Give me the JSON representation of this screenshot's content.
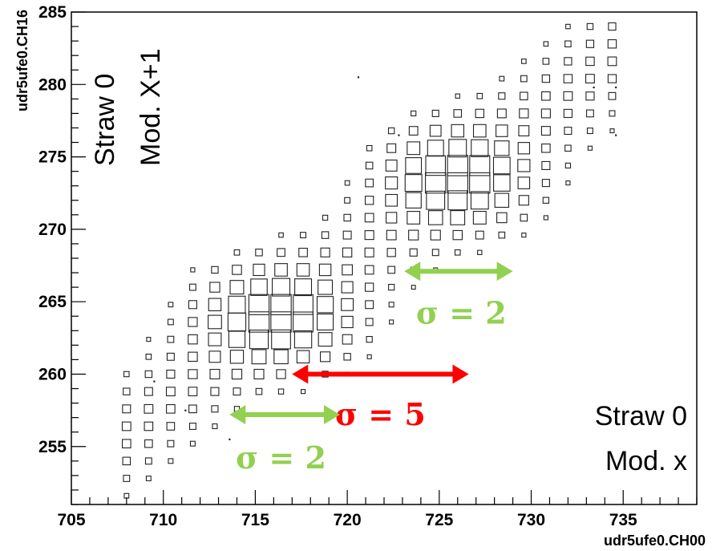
{
  "chart_data": {
    "type": "box-histogram-2d",
    "title": "",
    "xlabel": "udr5ufe0.CH00",
    "ylabel": "udr5ufe0.CH16",
    "xlim": [
      705,
      739
    ],
    "ylim": [
      251,
      285
    ],
    "x_ticks": [
      705,
      710,
      715,
      720,
      725,
      730,
      735
    ],
    "y_ticks": [
      255,
      260,
      265,
      270,
      275,
      280,
      285
    ],
    "bin_width": 1.2,
    "grid": false,
    "distribution": {
      "description_units": "data units",
      "clusters": [
        {
          "center_x": 716.2,
          "center_y": 264.0,
          "sigma_x": 2.3,
          "sigma_y": 2.0,
          "weight": 1.0
        },
        {
          "center_x": 726.0,
          "center_y": 273.6,
          "sigma_x": 2.2,
          "sigma_y": 2.0,
          "weight": 1.0
        }
      ],
      "band": {
        "slope": 0.975,
        "intercept_at_x": 716.2,
        "intercept_y": 264.0,
        "sigma_perp": 2.0,
        "weight": 0.18
      },
      "outliers": [
        [
          720.6,
          280.5
        ],
        [
          733.4,
          279.8
        ],
        [
          734.6,
          279.8
        ],
        [
          734.6,
          276.5
        ],
        [
          722.8,
          276.5
        ],
        [
          709.5,
          259.5
        ],
        [
          711.2,
          257.5
        ],
        [
          713.6,
          255.5
        ]
      ]
    },
    "annotations": [
      {
        "text": "Straw 0",
        "group": "top-left"
      },
      {
        "text": "Mod. X+1",
        "group": "top-left"
      },
      {
        "text": "Straw 0",
        "group": "bottom-right"
      },
      {
        "text": "Mod. x",
        "group": "bottom-right"
      }
    ],
    "arrows": [
      {
        "label": "σ = 2",
        "color": "#92d050",
        "x_from": 723.1,
        "x_to": 729.0,
        "y": 267.1,
        "label_x": 726.2,
        "label_y": 264.2
      },
      {
        "label": "σ = 5",
        "color": "#ff0000",
        "x_from": 717.0,
        "x_to": 726.6,
        "y": 260.0,
        "label_x": 721.8,
        "label_y": 257.2
      },
      {
        "label": "σ = 2",
        "color": "#92d050",
        "x_from": 713.6,
        "x_to": 719.6,
        "y": 257.2,
        "label_x": 716.4,
        "label_y": 254.2
      }
    ]
  }
}
